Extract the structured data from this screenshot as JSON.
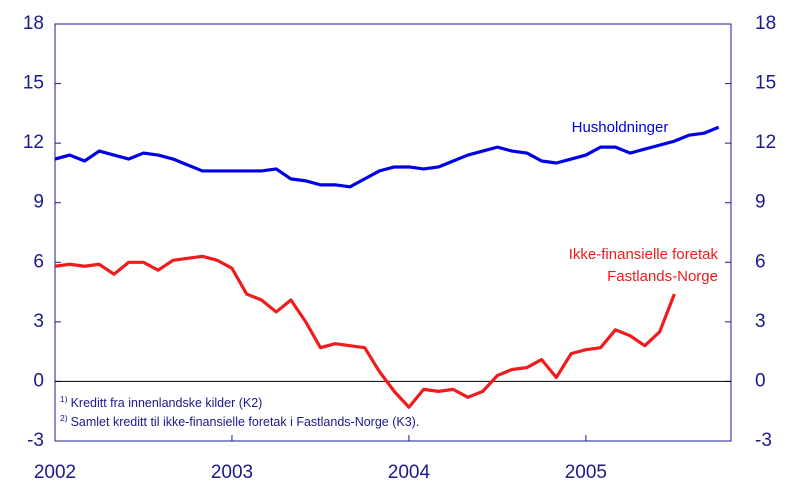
{
  "chart_data": {
    "type": "line",
    "x": [
      2002,
      2002.083,
      2002.167,
      2002.25,
      2002.333,
      2002.417,
      2002.5,
      2002.583,
      2002.667,
      2002.75,
      2002.833,
      2002.917,
      2003,
      2003.083,
      2003.167,
      2003.25,
      2003.333,
      2003.417,
      2003.5,
      2003.583,
      2003.667,
      2003.75,
      2003.833,
      2003.917,
      2004,
      2004.083,
      2004.167,
      2004.25,
      2004.333,
      2004.417,
      2004.5,
      2004.583,
      2004.667,
      2004.75,
      2004.833,
      2004.917,
      2005,
      2005.083,
      2005.167,
      2005.25,
      2005.333,
      2005.417,
      2005.5,
      2005.583,
      2005.667,
      2005.75
    ],
    "series": [
      {
        "name": "Husholdninger",
        "color": "#0000e6",
        "values": [
          11.2,
          11.4,
          11.1,
          11.6,
          11.4,
          11.2,
          11.5,
          11.4,
          11.2,
          10.9,
          10.6,
          10.6,
          10.6,
          10.6,
          10.6,
          10.7,
          10.2,
          10.1,
          9.9,
          9.9,
          9.8,
          10.2,
          10.6,
          10.8,
          10.8,
          10.7,
          10.8,
          11.1,
          11.4,
          11.6,
          11.8,
          11.6,
          11.5,
          11.1,
          11.0,
          11.2,
          11.4,
          11.8,
          11.8,
          11.5,
          11.7,
          11.9,
          12.1,
          12.4,
          12.5,
          12.8
        ]
      },
      {
        "name": "Ikke-finansielle foretak Fastlands-Norge",
        "label_lines": [
          "Ikke-finansielle foretak",
          "Fastlands-Norge"
        ],
        "color": "#ee1c1c",
        "values": [
          5.8,
          5.9,
          5.8,
          5.9,
          5.4,
          6.0,
          6.0,
          5.6,
          6.1,
          6.2,
          6.3,
          6.1,
          5.7,
          4.4,
          4.1,
          3.5,
          4.1,
          3.0,
          1.7,
          1.9,
          1.8,
          1.7,
          0.5,
          -0.5,
          -1.3,
          -0.4,
          -0.5,
          -0.4,
          -0.8,
          -0.5,
          0.3,
          0.6,
          0.7,
          1.1,
          0.2,
          1.4,
          1.6,
          1.7,
          2.6,
          2.3,
          1.8,
          2.5,
          4.4,
          null,
          null,
          null
        ]
      }
    ],
    "xlim": [
      2002,
      2005.82
    ],
    "xticks": [
      2002,
      2003,
      2004,
      2005
    ],
    "ylim": [
      -3,
      18
    ],
    "yticks": [
      -3,
      0,
      3,
      6,
      9,
      12,
      15,
      18
    ],
    "y2lim": [
      -3,
      18
    ],
    "y2ticks": [
      -3,
      0,
      3,
      6,
      9,
      12,
      15,
      18
    ],
    "notes": [
      {
        "mark": "1)",
        "text": "Kreditt fra innenlandske kilder (K2)"
      },
      {
        "mark": "2)",
        "text": "Samlet kreditt til ikke-finansielle foretak i Fastlands-Norge (K3)."
      }
    ]
  }
}
